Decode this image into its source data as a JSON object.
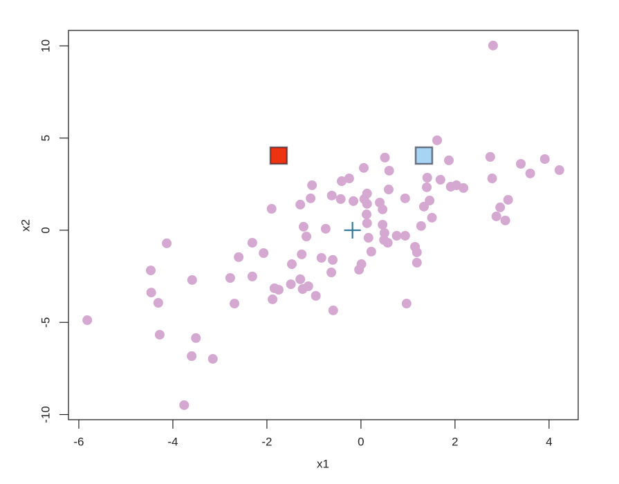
{
  "chart_data": {
    "type": "scatter",
    "x_label": "x1",
    "y_label": "x2",
    "xlim": [
      -6.22,
      4.62
    ],
    "ylim": [
      -10.28,
      10.84
    ],
    "xticks": [
      -6,
      -4,
      -2,
      0,
      2,
      4
    ],
    "yticks": [
      -10,
      -5,
      0,
      5,
      10
    ],
    "series": [
      {
        "color": "#d4a8d0",
        "marker": "circle",
        "x": [
          -5.82,
          -4.13,
          -4.47,
          -4.46,
          -4.31,
          -4.28,
          -3.76,
          -3.59,
          -3.51,
          -3.6,
          -3.15,
          -2.78,
          -2.69,
          -2.6,
          -2.31,
          -2.31,
          -2.07,
          -1.9,
          -1.88,
          -1.84,
          -1.75,
          -1.49,
          -1.47,
          -1.29,
          -1.29,
          -1.26,
          -1.22,
          -1.24,
          -1.16,
          -1.12,
          -1.07,
          -1.04,
          -0.96,
          -0.84,
          -0.75,
          -0.63,
          -0.6,
          -0.59,
          -0.62,
          -0.43,
          -0.41,
          -0.25,
          -0.16,
          -0.04,
          0.01,
          0.06,
          0.07,
          0.13,
          0.13,
          0.12,
          0.13,
          0.16,
          0.22,
          0.4,
          0.46,
          0.46,
          0.5,
          0.49,
          0.57,
          0.59,
          0.6,
          0.51,
          0.76,
          0.94,
          0.94,
          0.97,
          1.15,
          1.19,
          1.19,
          1.28,
          1.34,
          1.4,
          1.41,
          1.46,
          1.51,
          1.62,
          1.69,
          1.87,
          1.91,
          2.03,
          2.18,
          2.75,
          2.79,
          2.81,
          2.88,
          2.96,
          3.07,
          3.13,
          3.4,
          3.6,
          3.91,
          4.22
        ],
        "values": [
          -4.88,
          -0.71,
          -2.18,
          -3.38,
          -3.94,
          -5.67,
          -9.49,
          -2.7,
          -5.85,
          -6.83,
          -6.98,
          -2.59,
          -3.98,
          -1.46,
          -0.68,
          -2.51,
          -1.24,
          1.16,
          -3.75,
          -3.15,
          -3.23,
          -2.93,
          -1.84,
          1.39,
          -2.66,
          -1.31,
          0.19,
          -3.19,
          -0.34,
          -3.04,
          1.73,
          2.44,
          -3.56,
          -1.5,
          0.08,
          -2.29,
          -1.61,
          -4.35,
          1.88,
          1.69,
          2.66,
          2.81,
          1.58,
          -2.14,
          -1.84,
          3.38,
          1.69,
          1.99,
          1.43,
          0.86,
          0.38,
          -0.41,
          -1.16,
          1.5,
          1.13,
          0.3,
          -0.15,
          -0.53,
          -0.68,
          2.21,
          3.23,
          3.94,
          -0.3,
          1.73,
          -0.3,
          -3.98,
          -0.9,
          -1.2,
          -1.76,
          0.23,
          1.28,
          2.33,
          2.85,
          1.61,
          0.68,
          4.88,
          2.74,
          3.79,
          2.36,
          2.44,
          2.29,
          3.98,
          2.81,
          10.02,
          0.75,
          1.24,
          0.53,
          1.65,
          3.6,
          3.08,
          3.86,
          3.26
        ]
      },
      {
        "color": "#ee3311",
        "marker": "square",
        "x": [
          -1.75
        ],
        "values": [
          4.05
        ]
      },
      {
        "color": "#a8d4f4",
        "marker": "square",
        "x": [
          1.34
        ],
        "values": [
          4.05
        ]
      },
      {
        "color": "#337799",
        "marker": "cross",
        "x": [
          -0.18
        ],
        "values": [
          0.0
        ]
      }
    ]
  }
}
